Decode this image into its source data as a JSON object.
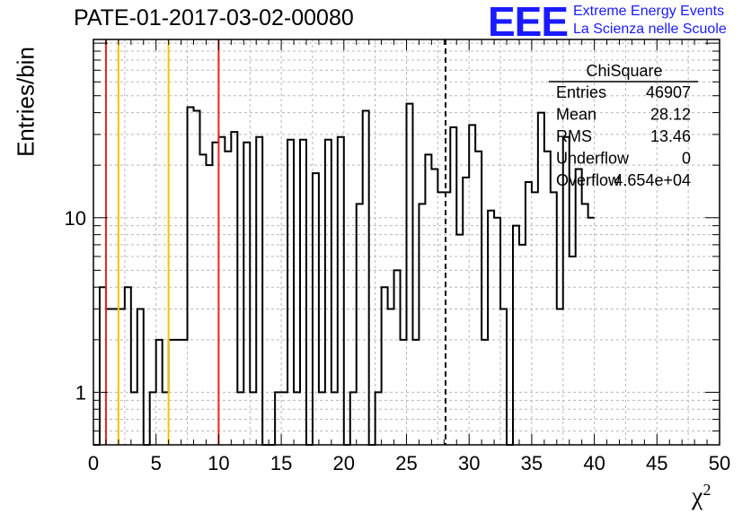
{
  "title": "PATE-01-2017-03-02-00080",
  "logo": {
    "text": "EEE",
    "line1": "Extreme Energy Events",
    "line2": "La Scienza nelle Scuole",
    "color": "#1a1aff"
  },
  "stats_box": {
    "title": "ChiSquare",
    "rows": [
      {
        "label": "Entries",
        "value": "46907"
      },
      {
        "label": "Mean",
        "value": "28.12"
      },
      {
        "label": "RMS",
        "value": "13.46"
      },
      {
        "label": "Underflow",
        "value": "0"
      },
      {
        "label": "Overflow",
        "value": "4.654e+04"
      }
    ]
  },
  "chart_data": {
    "type": "histogram",
    "title": "PATE-01-2017-03-02-00080",
    "xlabel": "χ",
    "xlabel_sup": "2",
    "ylabel": "Entries/bin",
    "xlim": [
      0,
      50
    ],
    "ylim": [
      0.5,
      105
    ],
    "y_scale": "log",
    "grid": true,
    "x_ticks": [
      "0",
      "5",
      "10",
      "15",
      "20",
      "25",
      "30",
      "35",
      "40",
      "45",
      "50"
    ],
    "y_ticks": [
      "1",
      "10"
    ],
    "bin_width": 0.5,
    "bin_start": 0,
    "values": [
      0,
      4,
      3,
      3,
      3,
      4,
      1,
      3,
      0,
      1,
      2,
      1,
      2,
      2,
      2,
      43,
      41,
      23,
      20,
      27,
      29,
      24,
      31,
      1,
      27,
      1,
      29,
      0,
      0,
      1,
      1,
      28,
      1,
      28,
      0,
      18,
      1,
      28,
      1,
      29,
      0,
      1,
      12,
      41,
      0,
      1,
      4,
      3,
      5,
      2,
      45,
      2,
      12,
      23,
      19,
      14,
      14,
      33,
      8,
      17,
      34,
      24,
      2,
      11,
      10,
      3,
      0,
      9,
      7,
      16,
      14,
      40,
      24,
      14,
      3,
      29,
      6,
      19,
      12,
      10
    ],
    "lines": [
      {
        "x": 1,
        "color": "#e8241c",
        "style": "solid"
      },
      {
        "x": 2,
        "color": "#f5c400",
        "style": "solid"
      },
      {
        "x": 6,
        "color": "#f5c400",
        "style": "solid"
      },
      {
        "x": 10,
        "color": "#e8241c",
        "style": "solid"
      },
      {
        "x": 28.12,
        "color": "#000000",
        "style": "dashed"
      }
    ]
  }
}
